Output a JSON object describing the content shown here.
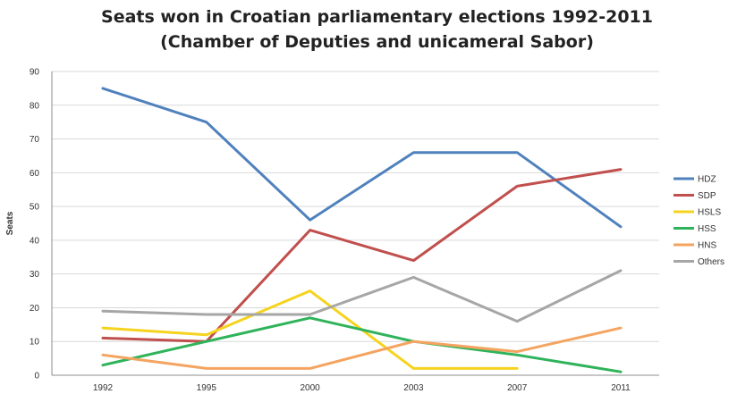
{
  "chart_data": {
    "type": "line",
    "title_lines": [
      "Seats won in Croatian parliamentary elections 1992-2011",
      "(Chamber of Deputies and unicameral Sabor)"
    ],
    "xlabel": "",
    "ylabel": "Seats",
    "categories": [
      "1992",
      "1995",
      "2000",
      "2003",
      "2007",
      "2011"
    ],
    "ylim": [
      0,
      90
    ],
    "yticks": [
      0,
      10,
      20,
      30,
      40,
      50,
      60,
      70,
      80,
      90
    ],
    "grid": true,
    "legend_position": "right",
    "series": [
      {
        "name": "HDZ",
        "color": "#4f81bd",
        "values": [
          85,
          75,
          46,
          66,
          66,
          44
        ]
      },
      {
        "name": "SDP",
        "color": "#c0504d",
        "values": [
          11,
          10,
          43,
          34,
          56,
          61
        ]
      },
      {
        "name": "HSLS",
        "color": "#f5d31e",
        "values": [
          14,
          12,
          25,
          2,
          2,
          null
        ]
      },
      {
        "name": "HSS",
        "color": "#2fb35a",
        "values": [
          3,
          10,
          17,
          10,
          6,
          1
        ]
      },
      {
        "name": "HNS",
        "color": "#f4a460",
        "values": [
          6,
          2,
          2,
          10,
          7,
          14
        ]
      },
      {
        "name": "Others",
        "color": "#a6a6a6",
        "values": [
          19,
          18,
          18,
          29,
          16,
          31
        ]
      }
    ]
  }
}
